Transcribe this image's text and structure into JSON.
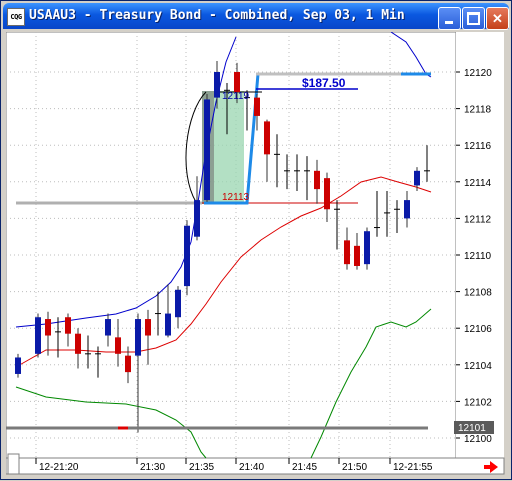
{
  "window": {
    "icon_label": "CQG",
    "title": "USAAU3 - Treasury Bond - Combined, Sep 03, 1 Min",
    "minimize_label": "",
    "maximize_label": "",
    "close_label": "✕"
  },
  "chart_data": {
    "type": "candlestick",
    "symbol": "USAAU3",
    "y_axis": {
      "min": 12100,
      "max": 12121,
      "ticks": [
        "12120",
        "12118",
        "12116",
        "12114",
        "12112",
        "12110",
        "12108",
        "12106",
        "12104",
        "12102",
        "12100"
      ]
    },
    "x_axis": {
      "ticks": [
        "12-21:20",
        "21:30",
        "21:35",
        "21:40",
        "21:45",
        "21:50",
        "12-21:55"
      ]
    },
    "last_price_label": "12101",
    "annotations": {
      "high_label": "12119",
      "low_label": "12113",
      "profit_label": "$187.50"
    },
    "colors": {
      "up": "#0a1aa8",
      "down": "#cc0000",
      "ma_upper": "#0000cc",
      "ma_middle": "#dd0000",
      "ma_lower": "#008800",
      "trade": "#1e8ae8",
      "zone": "#9ad6b0"
    }
  }
}
